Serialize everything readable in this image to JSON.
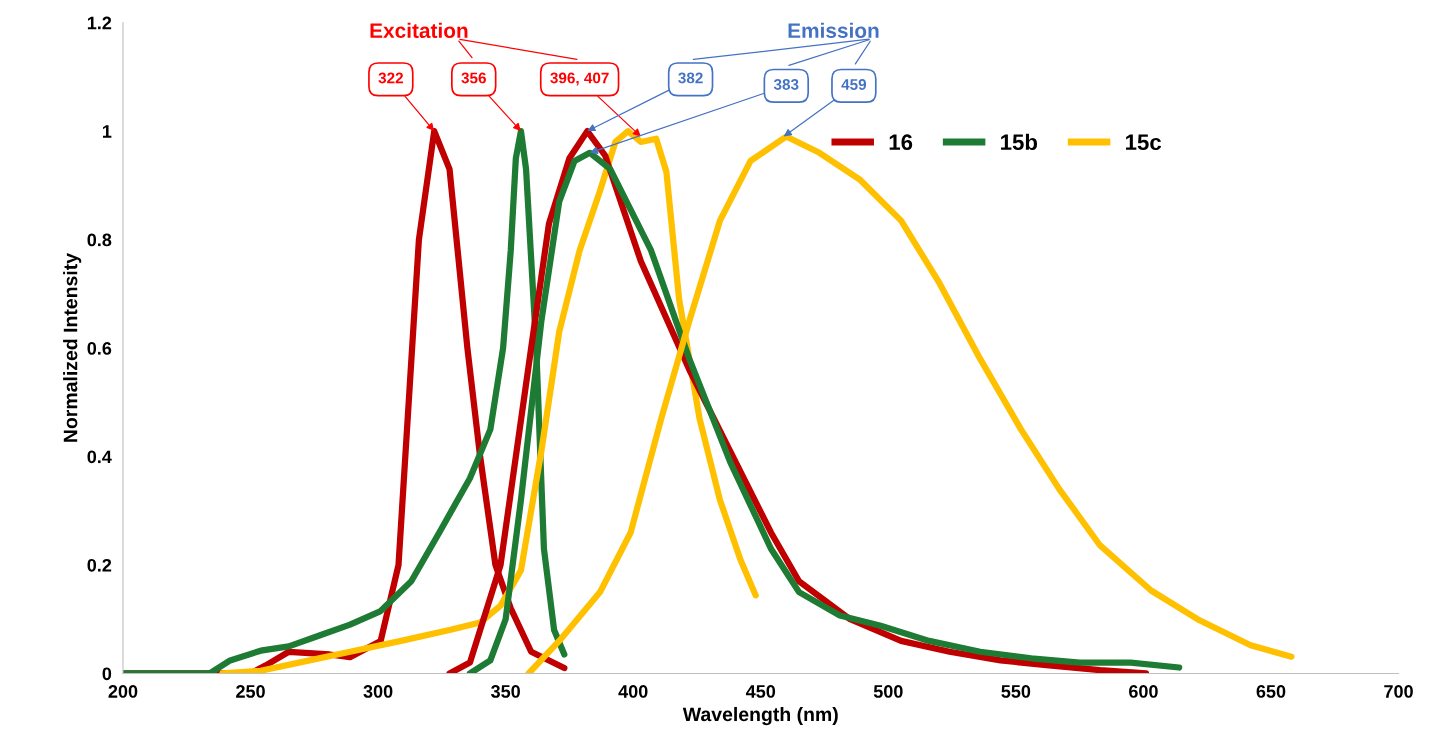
{
  "chart_data": {
    "type": "line",
    "xlabel": "Wavelength (nm)",
    "ylabel": "Normalized Intensity",
    "xlim": [
      200,
      700
    ],
    "xticks": [
      200,
      250,
      300,
      350,
      400,
      450,
      500,
      550,
      600,
      650,
      700
    ],
    "ylim": [
      0,
      1.2
    ],
    "yticks": [
      0,
      0.2,
      0.4,
      0.6,
      0.8,
      1,
      1.2
    ],
    "grid": false,
    "legend": "top right",
    "series": [
      {
        "name": "16",
        "color": "#c00000",
        "x": [
          200,
          250,
          256,
          265,
          281,
          289,
          301,
          308,
          316,
          322,
          328,
          335,
          340,
          346,
          352,
          360,
          373
        ],
        "values": [
          0,
          0,
          0.015,
          0.04,
          0.035,
          0.03,
          0.06,
          0.2,
          0.8,
          1.0,
          0.93,
          0.6,
          0.4,
          0.2,
          0.12,
          0.04,
          0.01
        ]
      },
      {
        "name": "15b",
        "color": "#1e7b34",
        "x": [
          200,
          234,
          242,
          254,
          265,
          277,
          289,
          301,
          313,
          324,
          336,
          344,
          349,
          352,
          354,
          356,
          358,
          362,
          365,
          369,
          373
        ],
        "values": [
          0,
          0,
          0.024,
          0.042,
          0.05,
          0.07,
          0.09,
          0.115,
          0.17,
          0.26,
          0.36,
          0.45,
          0.6,
          0.78,
          0.95,
          1.0,
          0.93,
          0.6,
          0.23,
          0.08,
          0.035
        ]
      },
      {
        "name": "15c",
        "color": "#ffc000",
        "x": [
          239,
          254,
          269,
          289,
          309,
          328,
          340,
          348,
          356,
          364,
          371,
          379,
          387,
          393,
          398,
          403,
          409,
          413,
          418,
          426,
          434,
          442,
          448
        ],
        "values": [
          0,
          0.005,
          0.02,
          0.04,
          0.06,
          0.08,
          0.094,
          0.125,
          0.19,
          0.41,
          0.63,
          0.78,
          0.89,
          0.98,
          1.0,
          0.98,
          0.986,
          0.925,
          0.69,
          0.47,
          0.32,
          0.21,
          0.144
        ]
      },
      {
        "color": "#c00000",
        "x": [
          328,
          336,
          348,
          360,
          367,
          375,
          382,
          389,
          403,
          422,
          438,
          454,
          465,
          485,
          505,
          524,
          544,
          563,
          583,
          601
        ],
        "values": [
          0,
          0.02,
          0.2,
          0.6,
          0.83,
          0.95,
          1.0,
          0.955,
          0.76,
          0.56,
          0.41,
          0.26,
          0.17,
          0.1,
          0.06,
          0.04,
          0.024,
          0.015,
          0.006,
          0
        ]
      },
      {
        "color": "#1e7b34",
        "x": [
          336,
          344,
          350,
          356,
          364,
          371,
          377,
          383,
          391,
          407,
          422,
          438,
          454,
          465,
          481,
          497,
          516,
          536,
          556,
          575,
          595,
          614
        ],
        "values": [
          0,
          0.024,
          0.1,
          0.32,
          0.65,
          0.87,
          0.945,
          0.96,
          0.93,
          0.78,
          0.58,
          0.39,
          0.23,
          0.15,
          0.107,
          0.088,
          0.06,
          0.04,
          0.028,
          0.02,
          0.02,
          0.011
        ]
      },
      {
        "color": "#ffc000",
        "x": [
          359,
          371,
          387,
          399,
          411,
          422,
          434,
          446,
          460,
          473,
          489,
          505,
          520,
          536,
          552,
          567,
          583,
          603,
          622,
          642,
          658
        ],
        "values": [
          0,
          0.06,
          0.15,
          0.26,
          0.47,
          0.65,
          0.835,
          0.945,
          0.99,
          0.96,
          0.91,
          0.835,
          0.72,
          0.58,
          0.45,
          0.34,
          0.236,
          0.153,
          0.098,
          0.052,
          0.031
        ]
      }
    ],
    "annotations": [
      "Excitation",
      "Emission",
      {
        "text": "322",
        "x": 322,
        "y": 1.0
      },
      {
        "text": "356",
        "x": 356,
        "y": 1.0
      },
      {
        "text": "396, 407",
        "x": 403,
        "y": 0.99
      },
      {
        "text": "382",
        "x": 382,
        "y": 1.0
      },
      {
        "text": "383",
        "x": 383,
        "y": 0.96
      },
      {
        "text": "459",
        "x": 459,
        "y": 0.99
      }
    ]
  }
}
